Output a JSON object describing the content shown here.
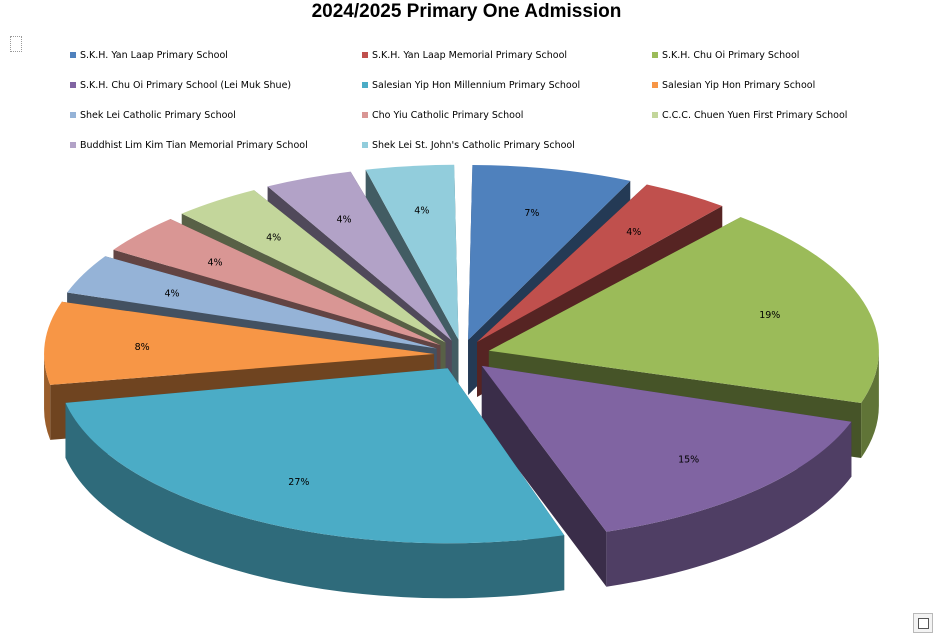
{
  "chart_data": {
    "type": "pie",
    "style": "3d-exploded",
    "title": "2024/2025  Primary One Admission",
    "legend_position": "top",
    "slices": [
      {
        "label": "S.K.H. Yan Laap Primary School",
        "value": 7,
        "value_label": "7%",
        "color": "#4f81bd"
      },
      {
        "label": "S.K.H. Yan Laap Memorial Primary School",
        "value": 4,
        "value_label": "4%",
        "color": "#c0504d"
      },
      {
        "label": "S.K.H. Chu Oi Primary School",
        "value": 19,
        "value_label": "19%",
        "color": "#9bbb59"
      },
      {
        "label": "S.K.H. Chu Oi Primary School (Lei Muk Shue)",
        "value": 15,
        "value_label": "15%",
        "color": "#8064a2"
      },
      {
        "label": "Salesian Yip Hon Millennium Primary School",
        "value": 27,
        "value_label": "27%",
        "color": "#4bacc6"
      },
      {
        "label": "Salesian Yip Hon Primary School",
        "value": 8,
        "value_label": "8%",
        "color": "#f79646"
      },
      {
        "label": "Shek Lei Catholic Primary School",
        "value": 4,
        "value_label": "4%",
        "color": "#95b3d7"
      },
      {
        "label": "Cho Yiu Catholic Primary School",
        "value": 4,
        "value_label": "4%",
        "color": "#d99694"
      },
      {
        "label": "C.C.C. Chuen Yuen First Primary School",
        "value": 4,
        "value_label": "4%",
        "color": "#c3d69b"
      },
      {
        "label": "Buddhist Lim Kim Tian Memorial Primary School",
        "value": 4,
        "value_label": "4%",
        "color": "#b2a2c7"
      },
      {
        "label": "Shek Lei St. John's Catholic Primary School",
        "value": 4,
        "value_label": "4%",
        "color": "#92cddc"
      }
    ]
  }
}
